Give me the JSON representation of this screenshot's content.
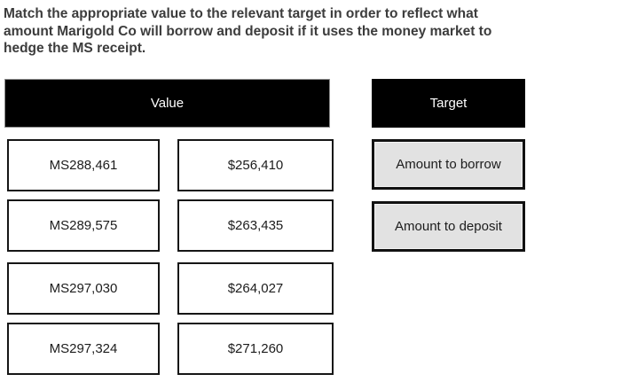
{
  "question": {
    "lines": [
      "Match the appropriate value to the relevant target in order to reflect what",
      "amount Marigold Co will borrow and deposit if it uses the money market to",
      "hedge the MS receipt."
    ]
  },
  "value_column": {
    "header": "Value",
    "left_items": [
      "MS288,461",
      "MS289,575",
      "MS297,030",
      "MS297,324"
    ],
    "right_items": [
      "$256,410",
      "$263,435",
      "$264,027",
      "$271,260"
    ]
  },
  "target_column": {
    "header": "Target",
    "items": [
      "Amount to borrow",
      "Amount to deposit"
    ]
  },
  "colors": {
    "header_bg": "#000000",
    "header_text": "#ffffff",
    "value_box_bg": "#ffffff",
    "target_box_bg": "#e2e2e2",
    "box_border": "#161616",
    "question_text": "#3c3c3c"
  }
}
